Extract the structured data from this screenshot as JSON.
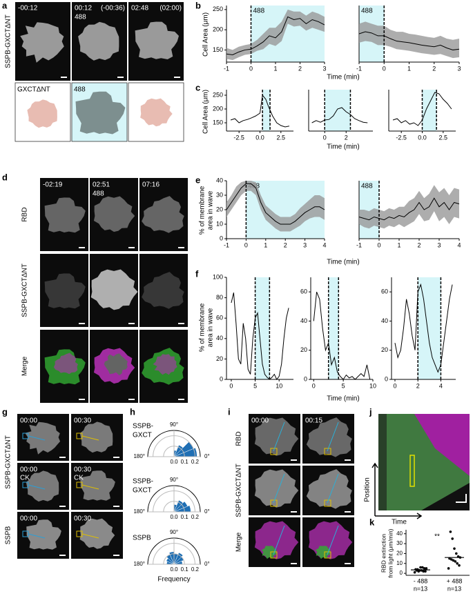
{
  "panel_labels": [
    "a",
    "b",
    "c",
    "d",
    "e",
    "f",
    "g",
    "h",
    "i",
    "j",
    "k"
  ],
  "a": {
    "row_label": "SSPB-GXCTΔNT",
    "frames": [
      {
        "time": "-00:12"
      },
      {
        "time": "00:12",
        "light": "488",
        "ref": "(-00:36)"
      },
      {
        "time": "02:48",
        "ref": "(02:00)"
      }
    ],
    "schematic": {
      "construct": "GXCTΔNT",
      "light": "488"
    }
  },
  "b": {
    "ylabel": "Cell Area (μm)",
    "xlabel": "Time (min)",
    "plots": [
      {
        "xlim": [
          -1,
          3
        ],
        "ylim": [
          120,
          260
        ],
        "xticks": [
          -1,
          0,
          1,
          2,
          3
        ],
        "yticks": [
          150,
          200,
          250
        ],
        "shade": [
          0,
          3
        ],
        "dashed_x": [
          0
        ],
        "light": "488",
        "x": [
          -1,
          -0.75,
          -0.5,
          -0.25,
          0,
          0.25,
          0.5,
          0.75,
          1,
          1.25,
          1.5,
          1.75,
          2,
          2.25,
          2.5,
          2.75,
          3
        ],
        "values": [
          140,
          138,
          145,
          150,
          152,
          160,
          170,
          185,
          180,
          195,
          232,
          225,
          228,
          215,
          225,
          220,
          212
        ],
        "upper": [
          155,
          150,
          158,
          162,
          165,
          175,
          190,
          205,
          205,
          220,
          250,
          245,
          245,
          235,
          245,
          240,
          232
        ],
        "lower": [
          128,
          125,
          132,
          138,
          140,
          148,
          152,
          165,
          160,
          172,
          215,
          208,
          210,
          198,
          205,
          200,
          195
        ]
      },
      {
        "xlim": [
          -1,
          3
        ],
        "ylim": [
          120,
          260
        ],
        "xticks": [
          -1,
          0,
          1,
          2,
          3
        ],
        "shade": [
          -1,
          0
        ],
        "dashed_x": [
          0
        ],
        "light": "488",
        "x": [
          -1,
          -0.75,
          -0.5,
          -0.25,
          0,
          0.25,
          0.5,
          0.75,
          1,
          1.25,
          1.5,
          1.75,
          2,
          2.25,
          2.5,
          2.75,
          3
        ],
        "values": [
          190,
          195,
          192,
          185,
          185,
          178,
          172,
          170,
          168,
          165,
          162,
          160,
          158,
          162,
          155,
          150,
          152
        ],
        "upper": [
          215,
          220,
          215,
          210,
          210,
          200,
          195,
          195,
          190,
          188,
          185,
          182,
          180,
          185,
          178,
          175,
          178
        ],
        "lower": [
          168,
          172,
          170,
          162,
          162,
          158,
          152,
          150,
          148,
          145,
          142,
          140,
          138,
          140,
          135,
          130,
          132
        ]
      }
    ]
  },
  "c": {
    "ylabel": "Cell Area (μm)",
    "xlabel": "Time (min)",
    "plots": [
      {
        "xlim": [
          -4,
          4
        ],
        "ylim": [
          120,
          270
        ],
        "xticks": [
          -2.5,
          {
            "value": 0,
            "label": "0.0"
          },
          2.5
        ],
        "yticks": [
          150,
          200,
          250
        ],
        "shade": [
          0.3,
          1.2
        ],
        "dashed_x": [
          0.3,
          1.2
        ],
        "x": [
          -3.5,
          -3,
          -2.5,
          -2,
          -1.5,
          -1,
          -0.5,
          0,
          0.3,
          0.7,
          1,
          1.5,
          2,
          2.5,
          3,
          3.5
        ],
        "values": [
          160,
          165,
          150,
          158,
          162,
          168,
          175,
          185,
          250,
          235,
          210,
          175,
          150,
          140,
          135,
          138
        ]
      },
      {
        "xlim": [
          -1.5,
          4.5
        ],
        "ylim": [
          120,
          270
        ],
        "xticks": [
          0,
          2
        ],
        "shade": [
          0,
          2.4
        ],
        "dashed_x": [
          0,
          2.4
        ],
        "x": [
          -1.2,
          -0.8,
          -0.4,
          0,
          0.4,
          0.8,
          1.2,
          1.6,
          2,
          2.4,
          2.8,
          3.2,
          3.6,
          4
        ],
        "values": [
          150,
          158,
          152,
          160,
          162,
          175,
          200,
          205,
          190,
          180,
          165,
          158,
          152,
          150
        ]
      },
      {
        "xlim": [
          -4,
          4
        ],
        "ylim": [
          120,
          270
        ],
        "xticks": [
          -2.5,
          {
            "value": 0,
            "label": "0.0"
          },
          2.5
        ],
        "shade": [
          0,
          1.7
        ],
        "dashed_x": [
          0,
          1.7
        ],
        "x": [
          -3.5,
          -3,
          -2.5,
          -2,
          -1.5,
          -1,
          -0.5,
          0,
          0.5,
          1,
          1.5,
          2,
          2.5,
          3,
          3.5
        ],
        "values": [
          160,
          165,
          150,
          158,
          145,
          150,
          140,
          160,
          200,
          230,
          260,
          255,
          235,
          220,
          200
        ]
      }
    ]
  },
  "d": {
    "rows": [
      "RBD",
      "SSPB-GXCTΔNT",
      "Merge"
    ],
    "frames": [
      {
        "time": "-02:19"
      },
      {
        "time": "02:51",
        "light": "488"
      },
      {
        "time": "07:16"
      }
    ]
  },
  "e": {
    "ylabel": [
      "% of membrane",
      "area in wave"
    ],
    "xlabel": "Time (min)",
    "plots": [
      {
        "xlim": [
          -1,
          4
        ],
        "ylim": [
          0,
          40
        ],
        "xticks": [
          -1,
          0,
          1,
          2,
          3,
          4
        ],
        "yticks": [
          0,
          10,
          20,
          30,
          40
        ],
        "shade": [
          0,
          4
        ],
        "dashed_x": [
          0
        ],
        "light": "488",
        "x": [
          -1,
          -0.75,
          -0.5,
          -0.25,
          0,
          0.25,
          0.5,
          0.75,
          1,
          1.25,
          1.5,
          1.75,
          2,
          2.25,
          2.5,
          2.75,
          3,
          3.25,
          3.5,
          3.75,
          4
        ],
        "values": [
          20,
          25,
          30,
          35,
          38,
          38,
          35,
          25,
          18,
          15,
          12,
          10,
          10,
          10,
          12,
          15,
          18,
          20,
          22,
          22,
          20
        ],
        "upper": [
          25,
          30,
          36,
          39,
          40,
          40,
          39,
          30,
          23,
          20,
          17,
          15,
          15,
          15,
          17,
          21,
          24,
          27,
          30,
          30,
          28
        ],
        "lower": [
          15,
          20,
          25,
          30,
          33,
          33,
          30,
          20,
          13,
          10,
          7,
          5,
          5,
          5,
          7,
          9,
          12,
          14,
          15,
          15,
          13
        ]
      },
      {
        "xlim": [
          -1,
          4
        ],
        "ylim": [
          0,
          40
        ],
        "xticks": [
          -1,
          0,
          1,
          2,
          3,
          4
        ],
        "shade": [
          -1,
          0
        ],
        "dashed_x": [
          0
        ],
        "light": "488",
        "x": [
          -1,
          -0.75,
          -0.5,
          -0.25,
          0,
          0.25,
          0.5,
          0.75,
          1,
          1.25,
          1.5,
          1.75,
          2,
          2.25,
          2.5,
          2.75,
          3,
          3.25,
          3.5,
          3.75,
          4
        ],
        "values": [
          15,
          14,
          13,
          15,
          14,
          13,
          15,
          14,
          16,
          15,
          18,
          20,
          25,
          20,
          22,
          28,
          22,
          25,
          20,
          25,
          24
        ],
        "upper": [
          20,
          20,
          19,
          21,
          20,
          19,
          21,
          20,
          22,
          22,
          26,
          28,
          33,
          28,
          31,
          37,
          32,
          35,
          30,
          35,
          34
        ],
        "lower": [
          10,
          8,
          7,
          9,
          8,
          7,
          9,
          8,
          10,
          8,
          10,
          12,
          17,
          12,
          13,
          19,
          12,
          15,
          10,
          15,
          14
        ]
      }
    ]
  },
  "f": {
    "ylabel": [
      "% of membrane",
      "area in wave"
    ],
    "xlabel": "Time (min)",
    "plots": [
      {
        "xlim": [
          -1,
          13
        ],
        "ylim": [
          0,
          100
        ],
        "xticks": [
          0,
          5,
          10
        ],
        "yticks": [
          0,
          20,
          40,
          60,
          80,
          100
        ],
        "shade": [
          5,
          8
        ],
        "dashed_x": [
          5,
          8
        ],
        "x": [
          0,
          0.5,
          1,
          1.5,
          2,
          2.5,
          3,
          3.5,
          4,
          4.5,
          5,
          5.5,
          6,
          6.5,
          7,
          7.5,
          8,
          8.5,
          9,
          9.5,
          10,
          10.5,
          11,
          11.5,
          12
        ],
        "values": [
          75,
          85,
          55,
          20,
          15,
          55,
          40,
          10,
          5,
          40,
          60,
          65,
          40,
          15,
          5,
          2,
          0,
          2,
          5,
          0,
          3,
          15,
          40,
          60,
          70
        ]
      },
      {
        "xlim": [
          -0.5,
          10
        ],
        "ylim": [
          0,
          70
        ],
        "xticks": [
          0,
          5,
          10
        ],
        "yticks": [
          0,
          20,
          40,
          60
        ],
        "shade": [
          2.5,
          4.2
        ],
        "dashed_x": [
          2.5,
          4.2
        ],
        "x": [
          0,
          0.5,
          1,
          1.5,
          2,
          2.5,
          3,
          3.5,
          4,
          4.5,
          5,
          5.5,
          6,
          6.5,
          7,
          7.5,
          8,
          8.5,
          9,
          9.5
        ],
        "values": [
          40,
          60,
          55,
          35,
          20,
          25,
          10,
          15,
          5,
          2,
          0,
          3,
          1,
          2,
          0,
          2,
          4,
          2,
          10,
          0
        ]
      },
      {
        "xlim": [
          -0.3,
          5.3
        ],
        "ylim": [
          0,
          70
        ],
        "xticks": [
          0,
          2,
          4
        ],
        "yticks": [
          0,
          20,
          40,
          60
        ],
        "shade": [
          2,
          4
        ],
        "dashed_x": [
          2,
          4
        ],
        "x": [
          0,
          0.25,
          0.5,
          0.75,
          1,
          1.25,
          1.5,
          1.75,
          2,
          2.25,
          2.5,
          2.75,
          3,
          3.25,
          3.5,
          3.75,
          4,
          4.25,
          4.5,
          4.75,
          5
        ],
        "values": [
          25,
          15,
          20,
          35,
          55,
          45,
          30,
          20,
          60,
          65,
          55,
          40,
          25,
          15,
          10,
          5,
          10,
          25,
          40,
          55,
          65
        ]
      }
    ]
  },
  "g": {
    "row_labels": [
      "SSPB-GXCTΔNT",
      "SSPB"
    ],
    "frames": [
      [
        {
          "time": "00:00"
        },
        {
          "time": "00:30"
        }
      ],
      [
        {
          "time": "00:00",
          "note": "CK"
        },
        {
          "time": "00:30",
          "note": "CK"
        }
      ],
      [
        {
          "time": "00:00"
        },
        {
          "time": "00:30"
        }
      ]
    ]
  },
  "h": {
    "xlabel": "Frequency",
    "plots": [
      {
        "title": [
          "SSPB-",
          "GXCT"
        ],
        "rlim": [
          0,
          0.25
        ],
        "rticks": [
          {
            "value": 0,
            "label": "0.0"
          },
          0.1,
          0.2
        ],
        "angle_ticks": [
          {
            "value": 90,
            "label": "90°"
          },
          {
            "value": 180,
            "label": "180°"
          },
          {
            "value": 0,
            "label": "0°"
          }
        ],
        "bin_edges": [
          0,
          22.5,
          45,
          67.5,
          90,
          112.5,
          135,
          157.5,
          180
        ],
        "values": [
          0.22,
          0.2,
          0.12,
          0.06,
          0,
          0,
          0,
          0
        ]
      },
      {
        "title": [
          "SSPB-",
          "GXCT"
        ],
        "rlim": [
          0,
          0.25
        ],
        "rticks": [
          {
            "value": 0,
            "label": "0.0"
          },
          0.1,
          0.2
        ],
        "angle_ticks": [
          {
            "value": 90,
            "label": "90°"
          },
          {
            "value": 180,
            "label": "180°"
          },
          {
            "value": 0,
            "label": "0°"
          }
        ],
        "bin_edges": [
          0,
          22.5,
          45,
          67.5,
          90,
          112.5,
          135,
          157.5,
          180
        ],
        "values": [
          0.16,
          0.14,
          0.12,
          0.07,
          0,
          0,
          0,
          0
        ]
      },
      {
        "title": [
          "SSPB"
        ],
        "rlim": [
          0,
          0.25
        ],
        "rticks": [
          {
            "value": 0,
            "label": "0.0"
          },
          0.1,
          0.2
        ],
        "angle_ticks": [
          {
            "value": 90,
            "label": "90°"
          },
          {
            "value": 180,
            "label": "180°"
          },
          {
            "value": 0,
            "label": "0°"
          }
        ],
        "bin_edges": [
          0,
          22.5,
          45,
          67.5,
          90,
          112.5,
          135,
          157.5,
          180
        ],
        "values": [
          0.08,
          0.1,
          0.12,
          0.1,
          0.12,
          0.1,
          0.08,
          0.07
        ]
      }
    ]
  },
  "i": {
    "rows": [
      "RBD",
      "SSPB-GXCTΔNT",
      "Merge"
    ],
    "times": [
      "00:00",
      "00:15"
    ]
  },
  "j": {
    "ylabel": "Position",
    "xlabel": "Time"
  },
  "k": {
    "ylabel": [
      "RBD extinction",
      "from light (μm/min)"
    ],
    "ylim": [
      -2,
      44
    ],
    "yticks": [
      0,
      10,
      20,
      30,
      40
    ],
    "significance": "**",
    "categories": [
      "- 488",
      "+ 488"
    ],
    "n_labels": [
      "n=13",
      "n=13"
    ],
    "groups": [
      [
        1,
        2,
        2,
        3,
        3,
        4,
        4,
        5,
        5,
        6,
        6,
        2,
        3
      ],
      [
        5,
        8,
        10,
        12,
        13,
        14,
        15,
        16,
        17,
        20,
        25,
        35,
        42
      ]
    ],
    "medians": [
      3.5,
      16
    ]
  }
}
